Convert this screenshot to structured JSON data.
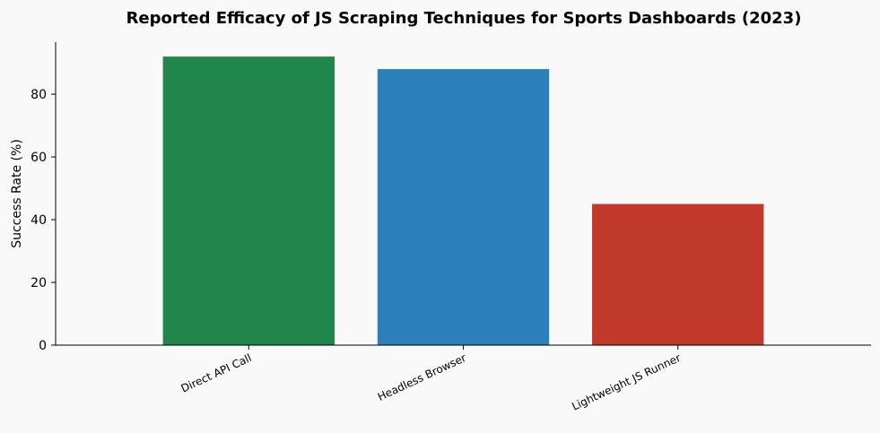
{
  "chart_data": {
    "type": "bar",
    "title": "Reported Efficacy of JS Scraping Techniques for Sports Dashboards (2023)",
    "xlabel": "",
    "ylabel": "Success Rate (%)",
    "categories": [
      "Direct API Call",
      "Headless Browser",
      "Lightweight JS Runner"
    ],
    "values": [
      92,
      88,
      45
    ],
    "colors": [
      "#20864b",
      "#2b80b9",
      "#c0392b"
    ],
    "ylim": [
      0,
      96.6
    ],
    "yticks": [
      0,
      20,
      40,
      60,
      80
    ],
    "xtick_rotation": -25,
    "grid": false,
    "legend": "none",
    "spines": [
      "left",
      "bottom"
    ]
  }
}
